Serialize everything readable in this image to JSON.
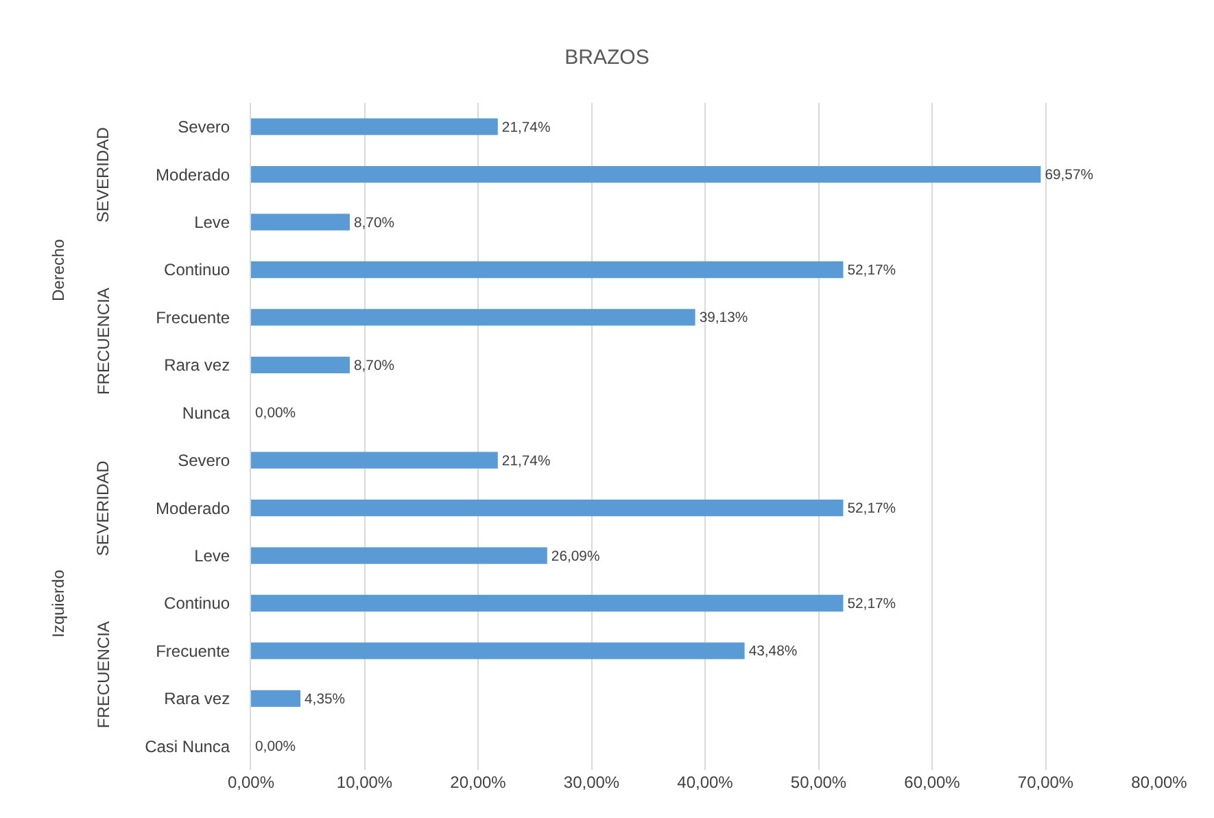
{
  "chart_data": {
    "type": "bar",
    "orientation": "horizontal",
    "title": "BRAZOS",
    "categories": [
      "Severo",
      "Moderado",
      "Leve",
      "Continuo",
      "Frecuente",
      "Rara vez",
      "Nunca",
      "Severo",
      "Moderado",
      "Leve",
      "Continuo",
      "Frecuente",
      "Rara vez",
      "Casi Nunca"
    ],
    "values": [
      21.74,
      69.57,
      8.7,
      52.17,
      39.13,
      8.7,
      0.0,
      21.74,
      52.17,
      26.09,
      52.17,
      43.48,
      4.35,
      0.0
    ],
    "value_labels": [
      "21,74%",
      "69,57%",
      "8,70%",
      "52,17%",
      "39,13%",
      "8,70%",
      "0,00%",
      "21,74%",
      "52,17%",
      "26,09%",
      "52,17%",
      "43,48%",
      "4,35%",
      "0,00%"
    ],
    "color": "#5b9bd5",
    "xlim": [
      0,
      80
    ],
    "xticks": [
      {
        "value": 0,
        "label": "0,00%"
      },
      {
        "value": 10,
        "label": "10,00%"
      },
      {
        "value": 20,
        "label": "20,00%"
      },
      {
        "value": 30,
        "label": "30,00%"
      },
      {
        "value": 40,
        "label": "40,00%"
      },
      {
        "value": 50,
        "label": "50,00%"
      },
      {
        "value": 60,
        "label": "60,00%"
      },
      {
        "value": 70,
        "label": "70,00%"
      },
      {
        "value": 80,
        "label": "80,00%"
      }
    ],
    "grid": "x",
    "legend": false,
    "annotations": [
      "SEVERIDAD",
      "FRECUENCIA",
      "SEVERIDAD",
      "FRECUENCIA",
      "Derecho",
      "Izquierdo"
    ]
  }
}
